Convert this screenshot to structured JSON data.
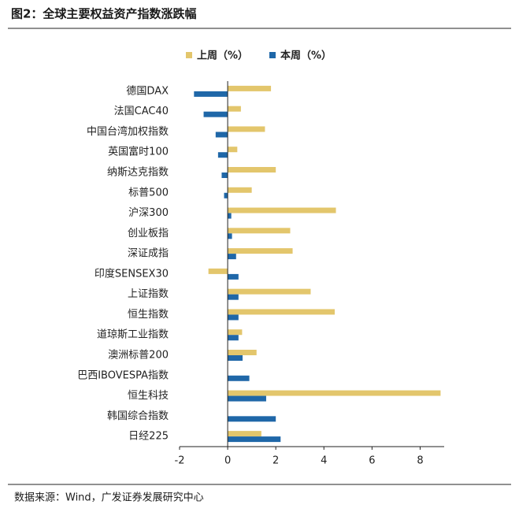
{
  "chart_data": {
    "type": "hbar",
    "title": "图2：全球主要权益资产指数涨跌幅",
    "source": "数据来源：Wind，广发证券发展研究中心",
    "categories": [
      "德国DAX",
      "法国CAC40",
      "中国台湾加权指数",
      "英国富时100",
      "纳斯达克指数",
      "标普500",
      "沪深300",
      "创业板指",
      "深证成指",
      "印度SENSEX30",
      "上证指数",
      "恒生指数",
      "道琼斯工业指数",
      "澳洲标普200",
      "巴西IBOVESPA指数",
      "恒生科技",
      "韩国综合指数",
      "日经225"
    ],
    "series": [
      {
        "name": "上周（%）",
        "color": "#E3C66C",
        "values": [
          1.8,
          0.55,
          1.55,
          0.4,
          2.0,
          1.0,
          4.5,
          2.6,
          2.7,
          -0.8,
          3.45,
          4.45,
          0.6,
          1.2,
          0,
          8.85,
          0,
          1.4
        ]
      },
      {
        "name": "本周（%）",
        "color": "#1F67A8",
        "values": [
          -1.4,
          -1.0,
          -0.5,
          -0.4,
          -0.25,
          -0.15,
          0.15,
          0.18,
          0.35,
          0.45,
          0.45,
          0.45,
          0.45,
          0.62,
          0.9,
          1.6,
          2.0,
          2.2
        ]
      }
    ],
    "xlim": [
      -2,
      9
    ],
    "xticks": [
      -2,
      0,
      2,
      4,
      6,
      8
    ],
    "legend": "top"
  }
}
